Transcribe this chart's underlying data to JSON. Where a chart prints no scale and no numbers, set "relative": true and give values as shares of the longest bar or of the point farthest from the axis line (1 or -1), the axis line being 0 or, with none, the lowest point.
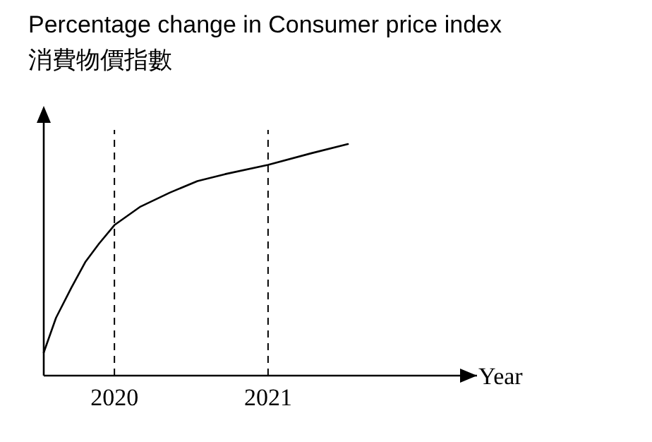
{
  "chart_data": {
    "type": "line",
    "title": "Percentage change in Consumer price index",
    "subtitle": "消費物價指數",
    "xlabel": "Year",
    "relative": true,
    "tick_labels": "x",
    "grid": false,
    "marker": "none",
    "line_style": "solid",
    "x": [
      2019.54,
      2019.62,
      2019.72,
      2019.81,
      2019.9,
      2020,
      2020.17,
      2020.36,
      2020.54,
      2020.72,
      2021,
      2021.28,
      2021.52
    ],
    "xlim": [
      2019.54,
      2022.36
    ],
    "xticks": [
      2020,
      2021
    ],
    "series": [
      {
        "color": "#000000",
        "values": [
          0.1,
          0.25,
          0.38,
          0.49,
          0.57,
          0.65,
          0.73,
          0.79,
          0.84,
          0.87,
          0.91,
          0.96,
          1.0
        ]
      }
    ],
    "ref_lines": [
      {
        "axis": "x",
        "value": 2020,
        "line_style": "dashed",
        "color": "#000000"
      },
      {
        "axis": "x",
        "value": 2021,
        "line_style": "dashed",
        "color": "#000000"
      }
    ]
  }
}
